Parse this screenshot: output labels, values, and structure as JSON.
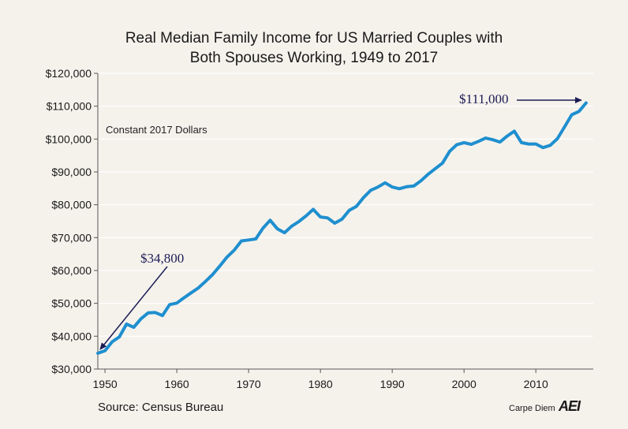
{
  "chart_data": {
    "type": "line",
    "title_line1": "Real Median Family Income for US Married Couples with",
    "title_line2": "Both Spouses Working, 1949 to 2017",
    "annotation": "Constant 2017 Dollars",
    "source": "Source: Census Bureau",
    "brand": "Carpe Diem",
    "brand_logo": "AEI",
    "callout_start": "$34,800",
    "callout_end": "$111,000",
    "line_color": "#1f8fcf",
    "arrow_color": "#1c1c55",
    "xlim": [
      1949,
      2018
    ],
    "ylim": [
      30000,
      120000
    ],
    "x_ticks": [
      1950,
      1960,
      1970,
      1980,
      1990,
      2000,
      2010
    ],
    "x_tick_labels": [
      "1950",
      "1960",
      "1970",
      "1980",
      "1990",
      "2000",
      "2010"
    ],
    "y_ticks": [
      30000,
      40000,
      50000,
      60000,
      70000,
      80000,
      90000,
      100000,
      110000,
      120000
    ],
    "y_tick_labels": [
      "$30,000",
      "$40,000",
      "$50,000",
      "$60,000",
      "$70,000",
      "$80,000",
      "$90,000",
      "$100,000",
      "$110,000",
      "$120,000"
    ],
    "grid": "horizontal",
    "x": [
      1949,
      1950,
      1951,
      1952,
      1953,
      1954,
      1955,
      1956,
      1957,
      1958,
      1959,
      1960,
      1961,
      1962,
      1963,
      1964,
      1965,
      1966,
      1967,
      1968,
      1969,
      1970,
      1971,
      1972,
      1973,
      1974,
      1975,
      1976,
      1977,
      1978,
      1979,
      1980,
      1981,
      1982,
      1983,
      1984,
      1985,
      1986,
      1987,
      1988,
      1989,
      1990,
      1991,
      1992,
      1993,
      1994,
      1995,
      1996,
      1997,
      1998,
      1999,
      2000,
      2001,
      2002,
      2003,
      2004,
      2005,
      2006,
      2007,
      2008,
      2009,
      2010,
      2011,
      2012,
      2013,
      2014,
      2015,
      2016,
      2017
    ],
    "y": [
      34800,
      35600,
      38300,
      39800,
      43700,
      42700,
      45300,
      47100,
      47200,
      46300,
      49600,
      50100,
      51700,
      53200,
      54700,
      56700,
      58800,
      61400,
      64100,
      66200,
      69000,
      69300,
      69600,
      72900,
      75300,
      72700,
      71500,
      73500,
      74900,
      76600,
      78600,
      76300,
      76000,
      74400,
      75600,
      78300,
      79500,
      82200,
      84400,
      85400,
      86700,
      85400,
      84900,
      85500,
      85700,
      87300,
      89300,
      91000,
      92700,
      96300,
      98300,
      98900,
      98400,
      99300,
      100300,
      99800,
      99100,
      100900,
      102400,
      98900,
      98500,
      98500,
      97400,
      98100,
      100100,
      103700,
      107400,
      108400,
      111000
    ]
  }
}
